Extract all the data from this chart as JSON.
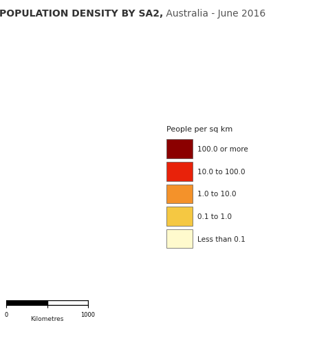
{
  "title_bold": "POPULATION DENSITY BY SA2,",
  "title_regular": " Australia - June 2016",
  "legend_title": "People per sq km",
  "legend_items": [
    {
      "label": "100.0 or more",
      "color": "#8B0000"
    },
    {
      "label": "10.0 to 100.0",
      "color": "#E8220A"
    },
    {
      "label": "1.0 to 10.0",
      "color": "#F4922A"
    },
    {
      "label": "0.1 to 1.0",
      "color": "#F5C842"
    },
    {
      "label": "Less than 0.1",
      "color": "#FFFACD"
    }
  ],
  "scalebar_label": "Kilometres",
  "scalebar_ticks": [
    "0",
    "",
    "1000"
  ],
  "background_color": "#FFFFFF",
  "map_background": "#FFFFFF",
  "ocean_color": "#FFFFFF",
  "title_fontsize": 10,
  "legend_fontsize": 7.5
}
